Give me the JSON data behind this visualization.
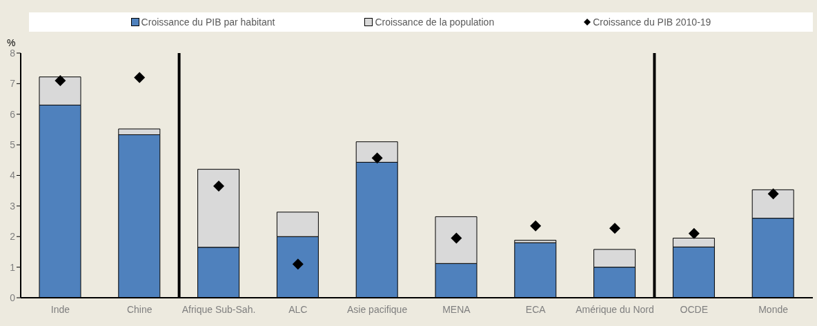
{
  "chart_data": {
    "type": "bar",
    "stacked": true,
    "ylabel": "%",
    "categories": [
      "Inde",
      "Chine",
      "Afrique Sub-Sah.",
      "ALC",
      "Asie pacifique",
      "MENA",
      "ECA",
      "Amérique du Nord",
      "OCDE",
      "Monde"
    ],
    "series": [
      {
        "name": "Croissance du PIB par habitant",
        "color": "#4f81bd",
        "values": [
          6.3,
          5.33,
          1.65,
          2.0,
          4.43,
          1.12,
          1.8,
          1.0,
          1.66,
          2.6
        ]
      },
      {
        "name": "Croissance de la population",
        "color": "#d9d9d9",
        "values": [
          0.92,
          0.19,
          2.55,
          0.8,
          0.67,
          1.53,
          0.08,
          0.58,
          0.29,
          0.93
        ]
      },
      {
        "name": "Croissance du PIB 2010-19",
        "type": "scatter",
        "color": "#000000",
        "marker": "diamond",
        "values": [
          7.1,
          7.2,
          3.65,
          1.1,
          4.57,
          1.95,
          2.35,
          2.27,
          2.1,
          3.4
        ]
      }
    ],
    "ylim": [
      0,
      8
    ],
    "yticks": [
      0,
      1,
      2,
      3,
      4,
      5,
      6,
      7,
      8
    ],
    "grid": false,
    "legend": "top"
  }
}
